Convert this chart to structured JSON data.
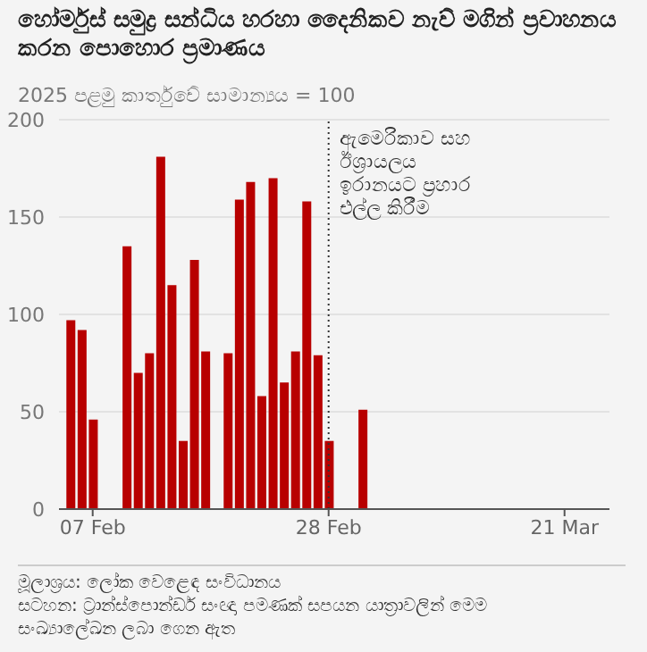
{
  "chart_data": {
    "type": "bar",
    "title": "හෝර්මුස් සමුද්‍ර සන්ධිය හරහා දෛනිකව නැව් මගින් ප්‍රවාහනය කරන පොහොර ප්‍රමාණය",
    "subtitle": "2025 පළමු කාර්තුවේ සාමාන්‍යය = 100",
    "x": [
      "--02-05",
      "--02-06",
      "--02-07",
      "--02-10",
      "--02-11",
      "--02-12",
      "--02-13",
      "--02-14",
      "--02-15",
      "--02-16",
      "--02-17",
      "--02-19",
      "--02-20",
      "--02-21",
      "--02-22",
      "--02-23",
      "--02-24",
      "--02-25",
      "--02-26",
      "--02-27",
      "--02-28",
      "--03-03"
    ],
    "values": [
      97,
      92,
      46,
      135,
      70,
      80,
      181,
      115,
      35,
      128,
      81,
      80,
      159,
      168,
      58,
      170,
      65,
      81,
      158,
      79,
      35,
      51
    ],
    "color": "#b80000",
    "xlim": [
      "--02-04",
      "--03-25"
    ],
    "xticks": [
      {
        "value": "--02-07",
        "label": "07 Feb"
      },
      {
        "value": "--02-28",
        "label": "28 Feb"
      },
      {
        "value": "--03-21",
        "label": "21 Mar"
      }
    ],
    "ylim": [
      0,
      200
    ],
    "yticks": [
      0,
      50,
      100,
      150,
      200
    ],
    "grid": "y",
    "ref_lines": [
      {
        "axis": "x",
        "value": "--02-28",
        "label": "ඇමෙරිකාව සහ\nඊශ්‍රායලය\nඉරානයට ප්‍රහාර\nඑල්ල කිරීම",
        "color": "#333333",
        "line_style": "dotted"
      }
    ],
    "annotations": [
      "මූලාශ්‍රය: ලෝක වෙළෙඳ සංවිධානය",
      "සටහන: ට්‍රාන්ස්පොන්ඩර් සංඥා පමණක් සපයන යාත්‍රාවලින් මෙම සංඛ්‍යාලේඛන ලබා ගෙන ඇත"
    ]
  }
}
